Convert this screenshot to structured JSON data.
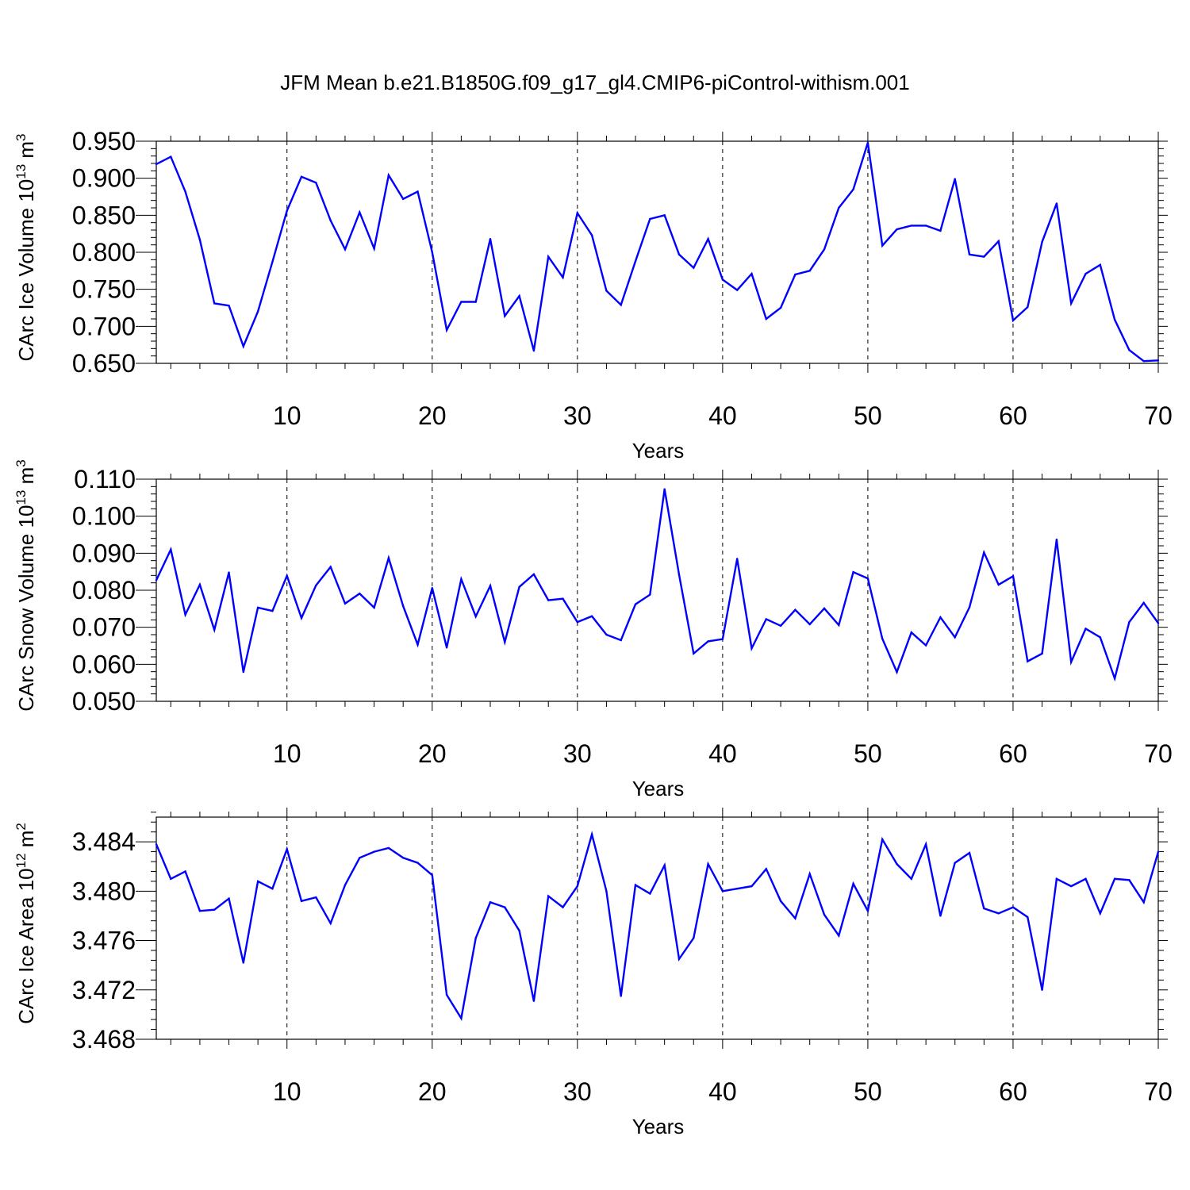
{
  "title": "JFM Mean b.e21.B1850G.f09_g17_gl4.CMIP6-piControl-withism.001",
  "chart_data": [
    {
      "type": "line",
      "ylabel_main": "CArc Ice Volume 10",
      "ylabel_exp": "13",
      "ylabel_unit": " m",
      "ylabel_unit_exp": "3",
      "xlabel": "Years",
      "xlim": [
        1,
        70
      ],
      "ylim": [
        0.65,
        0.95
      ],
      "yticks": [
        0.65,
        0.7,
        0.75,
        0.8,
        0.85,
        0.9,
        0.95
      ],
      "ytick_labels": [
        "0.650",
        "0.700",
        "0.750",
        "0.800",
        "0.850",
        "0.900",
        "0.950"
      ],
      "xticks": [
        10,
        20,
        30,
        40,
        50,
        60,
        70
      ],
      "xtick_labels": [
        "10",
        "20",
        "30",
        "40",
        "50",
        "60",
        "70"
      ],
      "series_color": "#0000ff",
      "x": [
        1,
        2,
        3,
        4,
        5,
        6,
        7,
        8,
        9,
        10,
        11,
        12,
        13,
        14,
        15,
        16,
        17,
        18,
        19,
        20,
        21,
        22,
        23,
        24,
        25,
        26,
        27,
        28,
        29,
        30,
        31,
        32,
        33,
        34,
        35,
        36,
        37,
        38,
        39,
        40,
        41,
        42,
        43,
        44,
        45,
        46,
        47,
        48,
        49,
        50,
        51,
        52,
        53,
        54,
        55,
        56,
        57,
        58,
        59,
        60,
        61,
        62,
        63,
        64,
        65,
        66,
        67,
        68,
        69,
        70
      ],
      "values": [
        0.919,
        0.929,
        0.882,
        0.817,
        0.731,
        0.728,
        0.673,
        0.72,
        0.787,
        0.856,
        0.902,
        0.894,
        0.843,
        0.804,
        0.854,
        0.805,
        0.904,
        0.872,
        0.882,
        0.8,
        0.695,
        0.733,
        0.733,
        0.818,
        0.714,
        0.741,
        0.667,
        0.794,
        0.766,
        0.853,
        0.823,
        0.748,
        0.729,
        0.788,
        0.845,
        0.85,
        0.797,
        0.779,
        0.818,
        0.763,
        0.749,
        0.771,
        0.71,
        0.725,
        0.77,
        0.775,
        0.804,
        0.86,
        0.885,
        0.948,
        0.809,
        0.831,
        0.836,
        0.836,
        0.829,
        0.899,
        0.797,
        0.794,
        0.815,
        0.708,
        0.726,
        0.814,
        0.866,
        0.731,
        0.771,
        0.783,
        0.709,
        0.668,
        0.653,
        0.654
      ]
    },
    {
      "type": "line",
      "ylabel_main": "CArc Snow Volume 10",
      "ylabel_exp": "13",
      "ylabel_unit": " m",
      "ylabel_unit_exp": "3",
      "xlabel": "Years",
      "xlim": [
        1,
        70
      ],
      "ylim": [
        0.05,
        0.11
      ],
      "yticks": [
        0.05,
        0.06,
        0.07,
        0.08,
        0.09,
        0.1,
        0.11
      ],
      "ytick_labels": [
        "0.050",
        "0.060",
        "0.070",
        "0.080",
        "0.090",
        "0.100",
        "0.110"
      ],
      "xticks": [
        10,
        20,
        30,
        40,
        50,
        60,
        70
      ],
      "xtick_labels": [
        "10",
        "20",
        "30",
        "40",
        "50",
        "60",
        "70"
      ],
      "series_color": "#0000ff",
      "x": [
        1,
        2,
        3,
        4,
        5,
        6,
        7,
        8,
        9,
        10,
        11,
        12,
        13,
        14,
        15,
        16,
        17,
        18,
        19,
        20,
        21,
        22,
        23,
        24,
        25,
        26,
        27,
        28,
        29,
        30,
        31,
        32,
        33,
        34,
        35,
        36,
        37,
        38,
        39,
        40,
        41,
        42,
        43,
        44,
        45,
        46,
        47,
        48,
        49,
        50,
        51,
        52,
        53,
        54,
        55,
        56,
        57,
        58,
        59,
        60,
        61,
        62,
        63,
        64,
        65,
        66,
        67,
        68,
        69,
        70
      ],
      "values": [
        0.0827,
        0.091,
        0.0734,
        0.0815,
        0.0693,
        0.0848,
        0.0579,
        0.0753,
        0.0744,
        0.0839,
        0.0725,
        0.0813,
        0.0863,
        0.0764,
        0.0791,
        0.0753,
        0.0887,
        0.0757,
        0.0653,
        0.0806,
        0.0645,
        0.083,
        0.0729,
        0.0812,
        0.066,
        0.0809,
        0.0843,
        0.0773,
        0.0777,
        0.0714,
        0.073,
        0.068,
        0.0665,
        0.0762,
        0.0788,
        0.1073,
        0.0842,
        0.0629,
        0.0662,
        0.0668,
        0.0885,
        0.0643,
        0.0722,
        0.0704,
        0.0747,
        0.0708,
        0.0751,
        0.0706,
        0.0849,
        0.0832,
        0.0669,
        0.0579,
        0.0686,
        0.0651,
        0.0727,
        0.0673,
        0.0754,
        0.0902,
        0.0815,
        0.0838,
        0.0608,
        0.0629,
        0.0937,
        0.0606,
        0.0696,
        0.0673,
        0.0562,
        0.0714,
        0.0766,
        0.0711
      ]
    },
    {
      "type": "line",
      "ylabel_main": "CArc Ice Area 10",
      "ylabel_exp": "12",
      "ylabel_unit": " m",
      "ylabel_unit_exp": "2",
      "xlabel": "Years",
      "xlim": [
        1,
        70
      ],
      "ylim": [
        3.468,
        3.486
      ],
      "yticks": [
        3.468,
        3.472,
        3.476,
        3.48,
        3.484
      ],
      "ytick_labels": [
        "3.468",
        "3.472",
        "3.476",
        "3.480",
        "3.484"
      ],
      "xticks": [
        10,
        20,
        30,
        40,
        50,
        60,
        70
      ],
      "xtick_labels": [
        "10",
        "20",
        "30",
        "40",
        "50",
        "60",
        "70"
      ],
      "series_color": "#0000ff",
      "x": [
        1,
        2,
        3,
        4,
        5,
        6,
        7,
        8,
        9,
        10,
        11,
        12,
        13,
        14,
        15,
        16,
        17,
        18,
        19,
        20,
        21,
        22,
        23,
        24,
        25,
        26,
        27,
        28,
        29,
        30,
        31,
        32,
        33,
        34,
        35,
        36,
        37,
        38,
        39,
        40,
        41,
        42,
        43,
        44,
        45,
        46,
        47,
        48,
        49,
        50,
        51,
        52,
        53,
        54,
        55,
        56,
        57,
        58,
        59,
        60,
        61,
        62,
        63,
        64,
        65,
        66,
        67,
        68,
        69,
        70
      ],
      "values": [
        3.4838,
        3.481,
        3.4816,
        3.4784,
        3.4785,
        3.4794,
        3.4742,
        3.4808,
        3.4802,
        3.4834,
        3.4792,
        3.4795,
        3.4774,
        3.4805,
        3.4827,
        3.4832,
        3.4835,
        3.4827,
        3.4823,
        3.4813,
        3.4716,
        3.4697,
        3.4762,
        3.4791,
        3.4787,
        3.4768,
        3.4711,
        3.4796,
        3.4787,
        3.4804,
        3.4846,
        3.48,
        3.4715,
        3.4805,
        3.4798,
        3.4821,
        3.4745,
        3.4762,
        3.4822,
        3.48,
        3.4802,
        3.4804,
        3.4818,
        3.4792,
        3.4778,
        3.4814,
        3.4781,
        3.4764,
        3.4806,
        3.4784,
        3.4842,
        3.4822,
        3.481,
        3.4838,
        3.478,
        3.4823,
        3.4831,
        3.4786,
        3.4782,
        3.4787,
        3.4779,
        3.472,
        3.481,
        3.4804,
        3.481,
        3.4782,
        3.481,
        3.4809,
        3.4791,
        3.4832
      ]
    }
  ]
}
